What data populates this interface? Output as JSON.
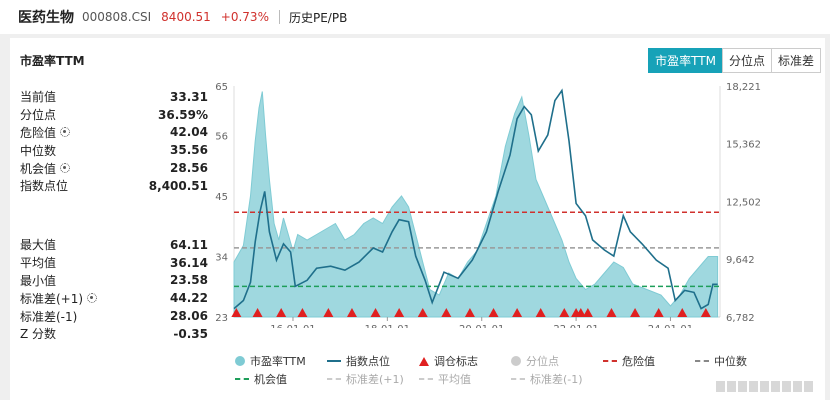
{
  "header": {
    "name": "医药生物",
    "code": "000808.CSI",
    "price": "8400.51",
    "change": "+0.73%",
    "history_link": "历史PE/PB"
  },
  "panel": {
    "title": "市盈率TTM",
    "tabs": [
      "市盈率TTM",
      "分位点",
      "标准差"
    ],
    "active_tab": 0
  },
  "stats_top": [
    {
      "label": "当前值",
      "value": "33.31",
      "gear": false
    },
    {
      "label": "分位点",
      "value": "36.59%",
      "gear": false
    },
    {
      "label": "危险值",
      "value": "42.04",
      "gear": true
    },
    {
      "label": "中位数",
      "value": "35.56",
      "gear": false
    },
    {
      "label": "机会值",
      "value": "28.56",
      "gear": true
    },
    {
      "label": "指数点位",
      "value": "8,400.51",
      "gear": false
    }
  ],
  "stats_bottom": [
    {
      "label": "最大值",
      "value": "64.11",
      "gear": false
    },
    {
      "label": "平均值",
      "value": "36.14",
      "gear": false
    },
    {
      "label": "最小值",
      "value": "23.58",
      "gear": false
    },
    {
      "label": "标准差(+1)",
      "value": "44.22",
      "gear": true
    },
    {
      "label": "标准差(-1)",
      "value": "28.06",
      "gear": false
    },
    {
      "label": "Z 分数",
      "value": "-0.35",
      "gear": false
    }
  ],
  "legend": [
    [
      {
        "label": "市盈率TTM",
        "symbol": "dot",
        "color": "#7fcbd4",
        "muted": false
      },
      {
        "label": "指数点位",
        "symbol": "line",
        "color": "#1f6f8b",
        "muted": false
      },
      {
        "label": "调仓标志",
        "symbol": "tri",
        "color": "#e02020",
        "muted": false
      },
      {
        "label": "分位点",
        "symbol": "dot",
        "color": "#cccccc",
        "muted": true
      },
      {
        "label": "危险值",
        "symbol": "dash",
        "color": "#d0312d",
        "muted": false
      },
      {
        "label": "中位数",
        "symbol": "dash",
        "color": "#888888",
        "muted": false
      }
    ],
    [
      {
        "label": "机会值",
        "symbol": "dash",
        "color": "#1e9e5a",
        "muted": false
      },
      {
        "label": "标准差(+1)",
        "symbol": "dash",
        "color": "#cccccc",
        "muted": true
      },
      {
        "label": "平均值",
        "symbol": "dash",
        "color": "#cccccc",
        "muted": true
      },
      {
        "label": "标准差(-1)",
        "symbol": "dash",
        "color": "#cccccc",
        "muted": true
      }
    ]
  ],
  "watermark": "",
  "chart_data": {
    "type": "area",
    "x_ticks": [
      "16-01-01",
      "18-01-01",
      "20-01-01",
      "22-01-01",
      "24-01-01"
    ],
    "x_tick_years": [
      2016,
      2018,
      2020,
      2022,
      2024
    ],
    "x_range": [
      2014.75,
      2025.05
    ],
    "y_left_ticks": [
      "65",
      "56",
      "45",
      "34",
      "23"
    ],
    "y_left_range": [
      23,
      65
    ],
    "y_right_ticks": [
      "18,221",
      "15,362",
      "12,502",
      "9,642",
      "6,782"
    ],
    "y_right_range": [
      6782,
      18221
    ],
    "reference_lines": {
      "danger": 42.04,
      "median": 35.56,
      "opportunity": 28.56
    },
    "series": [
      {
        "name": "市盈率TTM",
        "color": "#7fcbd4",
        "points": [
          [
            2014.75,
            33
          ],
          [
            2014.95,
            36
          ],
          [
            2015.1,
            45
          ],
          [
            2015.2,
            55
          ],
          [
            2015.28,
            61
          ],
          [
            2015.35,
            64
          ],
          [
            2015.42,
            56
          ],
          [
            2015.5,
            48
          ],
          [
            2015.6,
            40
          ],
          [
            2015.7,
            37
          ],
          [
            2015.8,
            41
          ],
          [
            2015.9,
            38
          ],
          [
            2016.0,
            35
          ],
          [
            2016.1,
            38
          ],
          [
            2016.3,
            37
          ],
          [
            2016.5,
            38
          ],
          [
            2016.7,
            39
          ],
          [
            2016.9,
            40
          ],
          [
            2017.1,
            37
          ],
          [
            2017.3,
            38
          ],
          [
            2017.5,
            40
          ],
          [
            2017.7,
            41
          ],
          [
            2017.9,
            40
          ],
          [
            2018.1,
            43
          ],
          [
            2018.2,
            44
          ],
          [
            2018.3,
            45
          ],
          [
            2018.45,
            43
          ],
          [
            2018.6,
            38
          ],
          [
            2018.75,
            33
          ],
          [
            2018.9,
            28
          ],
          [
            2019.1,
            27
          ],
          [
            2019.3,
            31
          ],
          [
            2019.5,
            30
          ],
          [
            2019.7,
            33
          ],
          [
            2019.9,
            35
          ],
          [
            2020.1,
            40
          ],
          [
            2020.3,
            45
          ],
          [
            2020.5,
            54
          ],
          [
            2020.7,
            60
          ],
          [
            2020.85,
            63
          ],
          [
            2021.0,
            56
          ],
          [
            2021.15,
            48
          ],
          [
            2021.3,
            45
          ],
          [
            2021.5,
            41
          ],
          [
            2021.7,
            37
          ],
          [
            2021.85,
            33
          ],
          [
            2022.0,
            30
          ],
          [
            2022.2,
            28
          ],
          [
            2022.4,
            29
          ],
          [
            2022.6,
            31
          ],
          [
            2022.8,
            33
          ],
          [
            2023.0,
            32
          ],
          [
            2023.2,
            29
          ],
          [
            2023.5,
            28
          ],
          [
            2023.8,
            27
          ],
          [
            2024.0,
            25
          ],
          [
            2024.2,
            27
          ],
          [
            2024.4,
            30
          ],
          [
            2024.6,
            32
          ],
          [
            2024.8,
            34
          ],
          [
            2025.0,
            34
          ]
        ]
      },
      {
        "name": "指数点位",
        "color": "#1f6f8b",
        "points": [
          [
            2014.75,
            7200
          ],
          [
            2014.95,
            7600
          ],
          [
            2015.1,
            8500
          ],
          [
            2015.2,
            10500
          ],
          [
            2015.3,
            12000
          ],
          [
            2015.4,
            13000
          ],
          [
            2015.5,
            11000
          ],
          [
            2015.65,
            9600
          ],
          [
            2015.8,
            10400
          ],
          [
            2015.95,
            10000
          ],
          [
            2016.05,
            8300
          ],
          [
            2016.3,
            8600
          ],
          [
            2016.5,
            9200
          ],
          [
            2016.8,
            9300
          ],
          [
            2017.1,
            9100
          ],
          [
            2017.4,
            9500
          ],
          [
            2017.7,
            10200
          ],
          [
            2017.9,
            10000
          ],
          [
            2018.1,
            11000
          ],
          [
            2018.25,
            11600
          ],
          [
            2018.45,
            11500
          ],
          [
            2018.6,
            9800
          ],
          [
            2018.8,
            8600
          ],
          [
            2018.95,
            7500
          ],
          [
            2019.2,
            9000
          ],
          [
            2019.5,
            8700
          ],
          [
            2019.8,
            9600
          ],
          [
            2020.1,
            11000
          ],
          [
            2020.35,
            13000
          ],
          [
            2020.6,
            14800
          ],
          [
            2020.75,
            16600
          ],
          [
            2020.9,
            17200
          ],
          [
            2021.05,
            16800
          ],
          [
            2021.2,
            15000
          ],
          [
            2021.4,
            15800
          ],
          [
            2021.55,
            17500
          ],
          [
            2021.7,
            18000
          ],
          [
            2021.85,
            15500
          ],
          [
            2022.0,
            12400
          ],
          [
            2022.2,
            11800
          ],
          [
            2022.35,
            10600
          ],
          [
            2022.6,
            10100
          ],
          [
            2022.8,
            9800
          ],
          [
            2023.0,
            11800
          ],
          [
            2023.15,
            11000
          ],
          [
            2023.4,
            10400
          ],
          [
            2023.7,
            9600
          ],
          [
            2023.95,
            9200
          ],
          [
            2024.1,
            7600
          ],
          [
            2024.3,
            8100
          ],
          [
            2024.5,
            8000
          ],
          [
            2024.65,
            7200
          ],
          [
            2024.8,
            7400
          ],
          [
            2024.9,
            8400
          ],
          [
            2025.0,
            8400
          ]
        ]
      }
    ],
    "rebalance_marks": [
      2014.8,
      2015.25,
      2015.75,
      2016.2,
      2016.75,
      2017.25,
      2017.75,
      2018.25,
      2018.75,
      2019.25,
      2019.75,
      2020.25,
      2020.75,
      2021.25,
      2021.75,
      2022.0,
      2022.1,
      2022.25,
      2022.75,
      2023.25,
      2023.75,
      2024.25,
      2024.75
    ],
    "grid": false
  }
}
